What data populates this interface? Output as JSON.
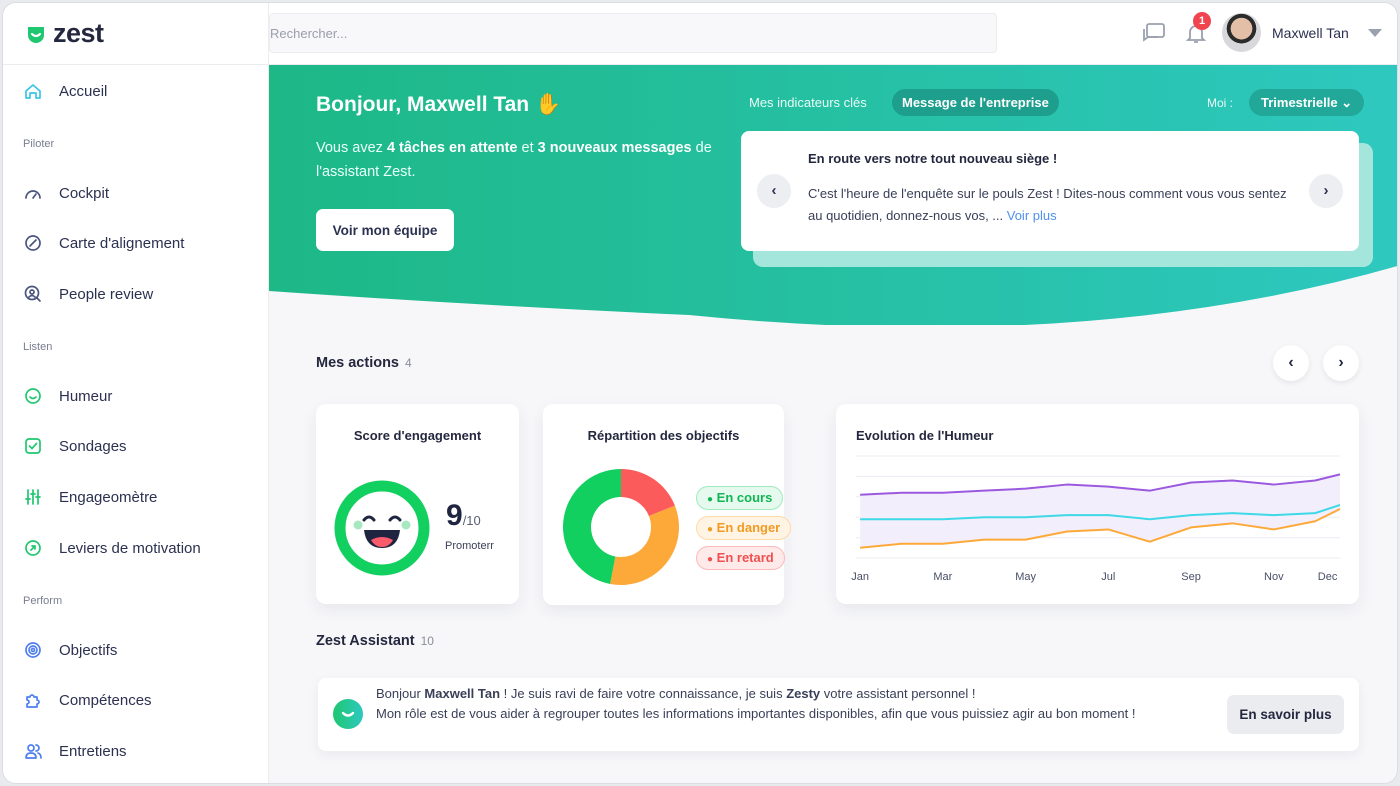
{
  "brand": {
    "name": "zest",
    "color": "#1fc770"
  },
  "search": {
    "placeholder": "Rechercher..."
  },
  "user": {
    "name": "Maxwell Tan",
    "notifications": "1"
  },
  "sidebar": {
    "items": [
      {
        "label": "Accueil",
        "icon": "home-icon"
      },
      {
        "section": "Piloter"
      },
      {
        "label": "Cockpit",
        "icon": "gauge-icon"
      },
      {
        "label": "Carte d'alignement",
        "icon": "compass-icon"
      },
      {
        "label": "People review",
        "icon": "user-search-icon"
      },
      {
        "section": "Listen"
      },
      {
        "label": "Humeur",
        "icon": "smile-icon"
      },
      {
        "label": "Sondages",
        "icon": "check-square-icon"
      },
      {
        "label": "Engageomètre",
        "icon": "sliders-icon"
      },
      {
        "label": "Leviers de motivation",
        "icon": "arrow-circle-icon"
      },
      {
        "section": "Perform"
      },
      {
        "label": "Objectifs",
        "icon": "target-icon"
      },
      {
        "label": "Compétences",
        "icon": "puzzle-icon"
      },
      {
        "label": "Entretiens",
        "icon": "users-icon"
      }
    ]
  },
  "banner": {
    "greeting": "Bonjour, Maxwell Tan ✋",
    "sub_1": "Vous avez ",
    "sub_tasks": "4 tâches en attente",
    "sub_2": " et ",
    "sub_msgs": "3 nouveaux messages",
    "sub_3": " de l'assistant Zest.",
    "team_button": "Voir mon équipe",
    "tab_indicators": "Mes indicateurs clés",
    "tab_message": "Message de l'entreprise",
    "period_label": "Moi :",
    "period_value": "Trimestrielle",
    "message_title": "En route vers notre tout nouveau siège !",
    "message_body": "C'est l'heure de l'enquête sur le pouls Zest ! Dites-nous comment vous vous sentez au quotidien, donnez-nous vos, ... ",
    "message_link": "Voir plus"
  },
  "actions": {
    "title": "Mes actions",
    "count": "4",
    "engagement": {
      "title": "Score d'engagement",
      "score": "9",
      "max": "/10",
      "label": "Promoterr"
    },
    "objectives": {
      "title": "Répartition des objectifs"
    },
    "mood": {
      "title": "Evolution de l'Humeur"
    }
  },
  "assistant": {
    "title": "Zest Assistant",
    "count": "10",
    "line1_a": "Bonjour ",
    "line1_name": "Maxwell Tan",
    "line1_b": " ! Je suis ravi de faire votre connaissance, je suis ",
    "line1_bot": "Zesty",
    "line1_c": " votre assistant personnel !",
    "line2": "Mon rôle est de vous aider à regrouper toutes les informations importantes disponibles, afin que vous puissiez agir au bon moment !",
    "button": "En savoir plus"
  },
  "chart_data": [
    {
      "type": "pie",
      "title": "Répartition des objectifs",
      "categories": [
        "En cours",
        "En danger",
        "En retard"
      ],
      "values": [
        47,
        34,
        19
      ],
      "colors": [
        "#12d05f",
        "#fda93a",
        "#fb5b5b"
      ],
      "legend": "right"
    },
    {
      "type": "line",
      "title": "Evolution de l'Humeur",
      "x": [
        1,
        2,
        3,
        4,
        5,
        6,
        7,
        8,
        9,
        10,
        11,
        12,
        12.6
      ],
      "xticks": [
        {
          "v": 1,
          "label": "Jan"
        },
        {
          "v": 3,
          "label": "Mar"
        },
        {
          "v": 5,
          "label": "May"
        },
        {
          "v": 7,
          "label": "Jul"
        },
        {
          "v": 9,
          "label": "Sep"
        },
        {
          "v": 11,
          "label": "Nov"
        },
        {
          "v": 12.3,
          "label": "Dec"
        }
      ],
      "xlim": [
        0.9,
        12.6
      ],
      "ylim": [
        0,
        5
      ],
      "grid": true,
      "series": [
        {
          "color": "#9b59e0",
          "values": [
            3.1,
            3.2,
            3.2,
            3.3,
            3.4,
            3.6,
            3.5,
            3.3,
            3.7,
            3.8,
            3.6,
            3.8,
            4.1
          ]
        },
        {
          "color": "#3fd8e6",
          "values": [
            1.9,
            1.9,
            1.9,
            2.0,
            2.0,
            2.1,
            2.1,
            1.9,
            2.1,
            2.2,
            2.1,
            2.2,
            2.6
          ]
        },
        {
          "color": "#fda93a",
          "values": [
            0.5,
            0.7,
            0.7,
            0.9,
            0.9,
            1.3,
            1.4,
            0.8,
            1.5,
            1.7,
            1.4,
            1.8,
            2.4
          ]
        }
      ]
    }
  ]
}
